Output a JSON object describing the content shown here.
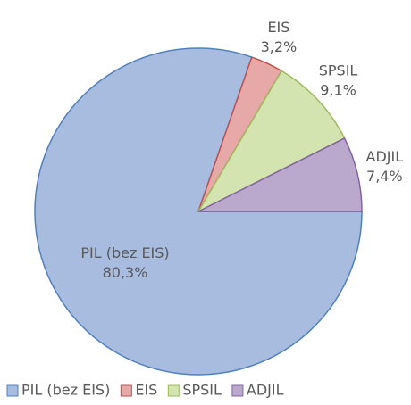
{
  "chart_data": {
    "type": "pie",
    "categories": [
      "PIL (bez EIS)",
      "EIS",
      "SPSIL",
      "ADJIL"
    ],
    "values": [
      80.3,
      3.2,
      9.1,
      7.4
    ],
    "value_labels": [
      "80,3%",
      "3,2%",
      "9,1%",
      "7,4%"
    ],
    "colors": [
      "#a7bcdf",
      "#e7a9a8",
      "#d4e4b1",
      "#baa9cd"
    ],
    "edge_colors": [
      "#4f81bd",
      "#c0504d",
      "#9bbb59",
      "#8064a2"
    ],
    "legend": "bottom"
  }
}
